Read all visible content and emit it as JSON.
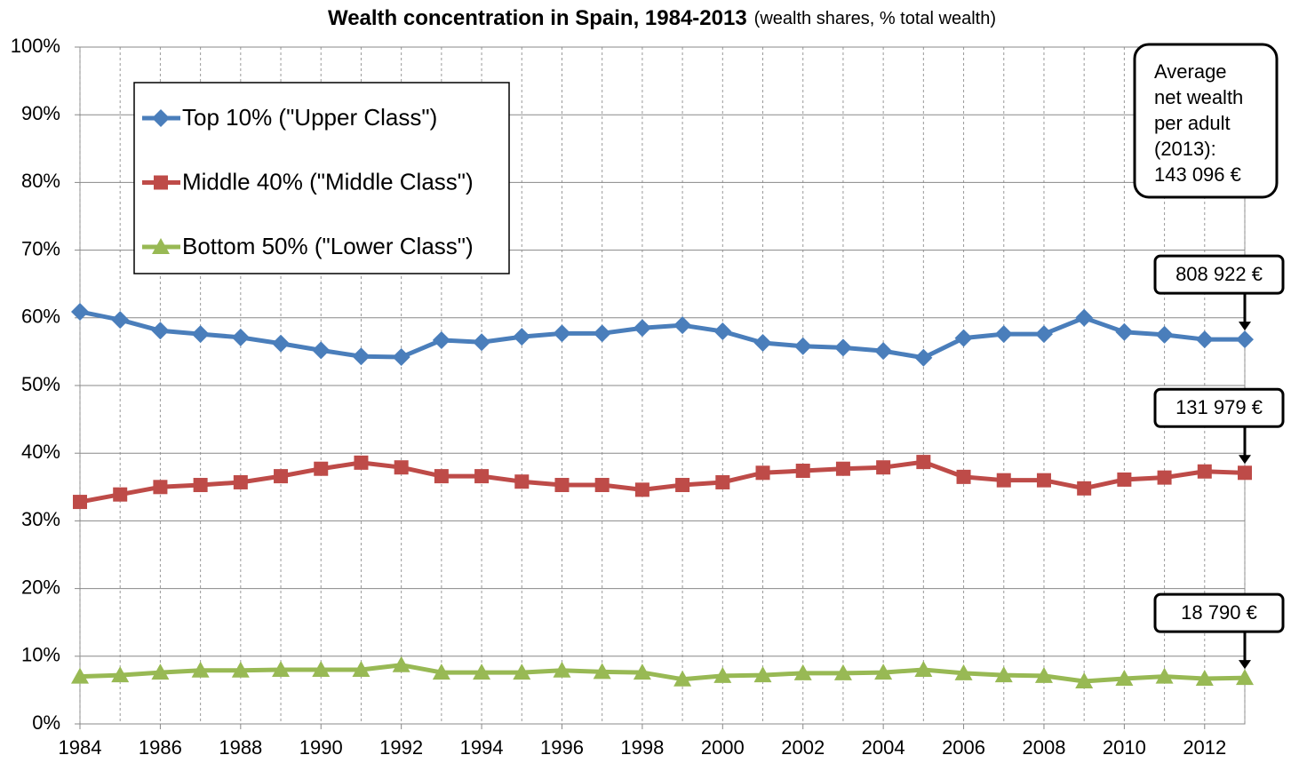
{
  "chart_data": {
    "type": "line",
    "title": "Wealth concentration in Spain, 1984-2013",
    "subtitle": "(wealth shares, % total wealth)",
    "x": [
      1984,
      1985,
      1986,
      1987,
      1988,
      1989,
      1990,
      1991,
      1992,
      1993,
      1994,
      1995,
      1996,
      1997,
      1998,
      1999,
      2000,
      2001,
      2002,
      2003,
      2004,
      2005,
      2006,
      2007,
      2008,
      2009,
      2010,
      2011,
      2012,
      2013
    ],
    "xlim": [
      1984,
      2013
    ],
    "xticks": [
      1984,
      1986,
      1988,
      1990,
      1992,
      1994,
      1996,
      1998,
      2000,
      2002,
      2004,
      2006,
      2008,
      2010,
      2012
    ],
    "ylim": [
      0,
      100
    ],
    "yticks": [
      {
        "value": 0,
        "label": "0%"
      },
      {
        "value": 10,
        "label": "10%"
      },
      {
        "value": 20,
        "label": "20%"
      },
      {
        "value": 30,
        "label": "30%"
      },
      {
        "value": 40,
        "label": "40%"
      },
      {
        "value": 50,
        "label": "50%"
      },
      {
        "value": 60,
        "label": "60%"
      },
      {
        "value": 70,
        "label": "70%"
      },
      {
        "value": 80,
        "label": "80%"
      },
      {
        "value": 90,
        "label": "90%"
      },
      {
        "value": 100,
        "label": "100%"
      }
    ],
    "grid": true,
    "legend": "upper left",
    "series": [
      {
        "name": "Top 10% (\"Upper Class\")",
        "color": "#4a7ebb",
        "marker": "diamond",
        "values": [
          60.9,
          59.7,
          58.1,
          57.6,
          57.1,
          56.2,
          55.2,
          54.3,
          54.2,
          56.7,
          56.4,
          57.2,
          57.7,
          57.7,
          58.5,
          58.9,
          58.0,
          56.3,
          55.8,
          55.6,
          55.1,
          54.1,
          57.0,
          57.6,
          57.6,
          60.0,
          57.9,
          57.5,
          56.8,
          56.8
        ]
      },
      {
        "name": "Middle 40% (\"Middle Class\")",
        "color": "#be4b48",
        "marker": "square",
        "values": [
          32.8,
          33.9,
          35.0,
          35.3,
          35.7,
          36.6,
          37.7,
          38.6,
          37.9,
          36.6,
          36.6,
          35.8,
          35.3,
          35.3,
          34.6,
          35.3,
          35.7,
          37.1,
          37.4,
          37.7,
          37.9,
          38.7,
          36.5,
          36.0,
          36.0,
          34.8,
          36.1,
          36.4,
          37.3,
          37.1
        ]
      },
      {
        "name": "Bottom 50% (\"Lower Class\")",
        "color": "#98b954",
        "marker": "triangle",
        "values": [
          7.0,
          7.2,
          7.6,
          7.9,
          7.9,
          8.0,
          8.0,
          8.0,
          8.7,
          7.6,
          7.6,
          7.6,
          7.9,
          7.7,
          7.6,
          6.6,
          7.1,
          7.2,
          7.5,
          7.5,
          7.6,
          8.0,
          7.5,
          7.2,
          7.1,
          6.3,
          6.7,
          7.0,
          6.7,
          6.8
        ]
      }
    ],
    "annotations": [
      {
        "lines": [
          "Average",
          "net wealth",
          "per adult",
          "(2013):",
          "143 096 €"
        ]
      },
      {
        "text": "808 922 €"
      },
      {
        "text": "131 979 €"
      },
      {
        "text": "18 790 €"
      }
    ]
  }
}
